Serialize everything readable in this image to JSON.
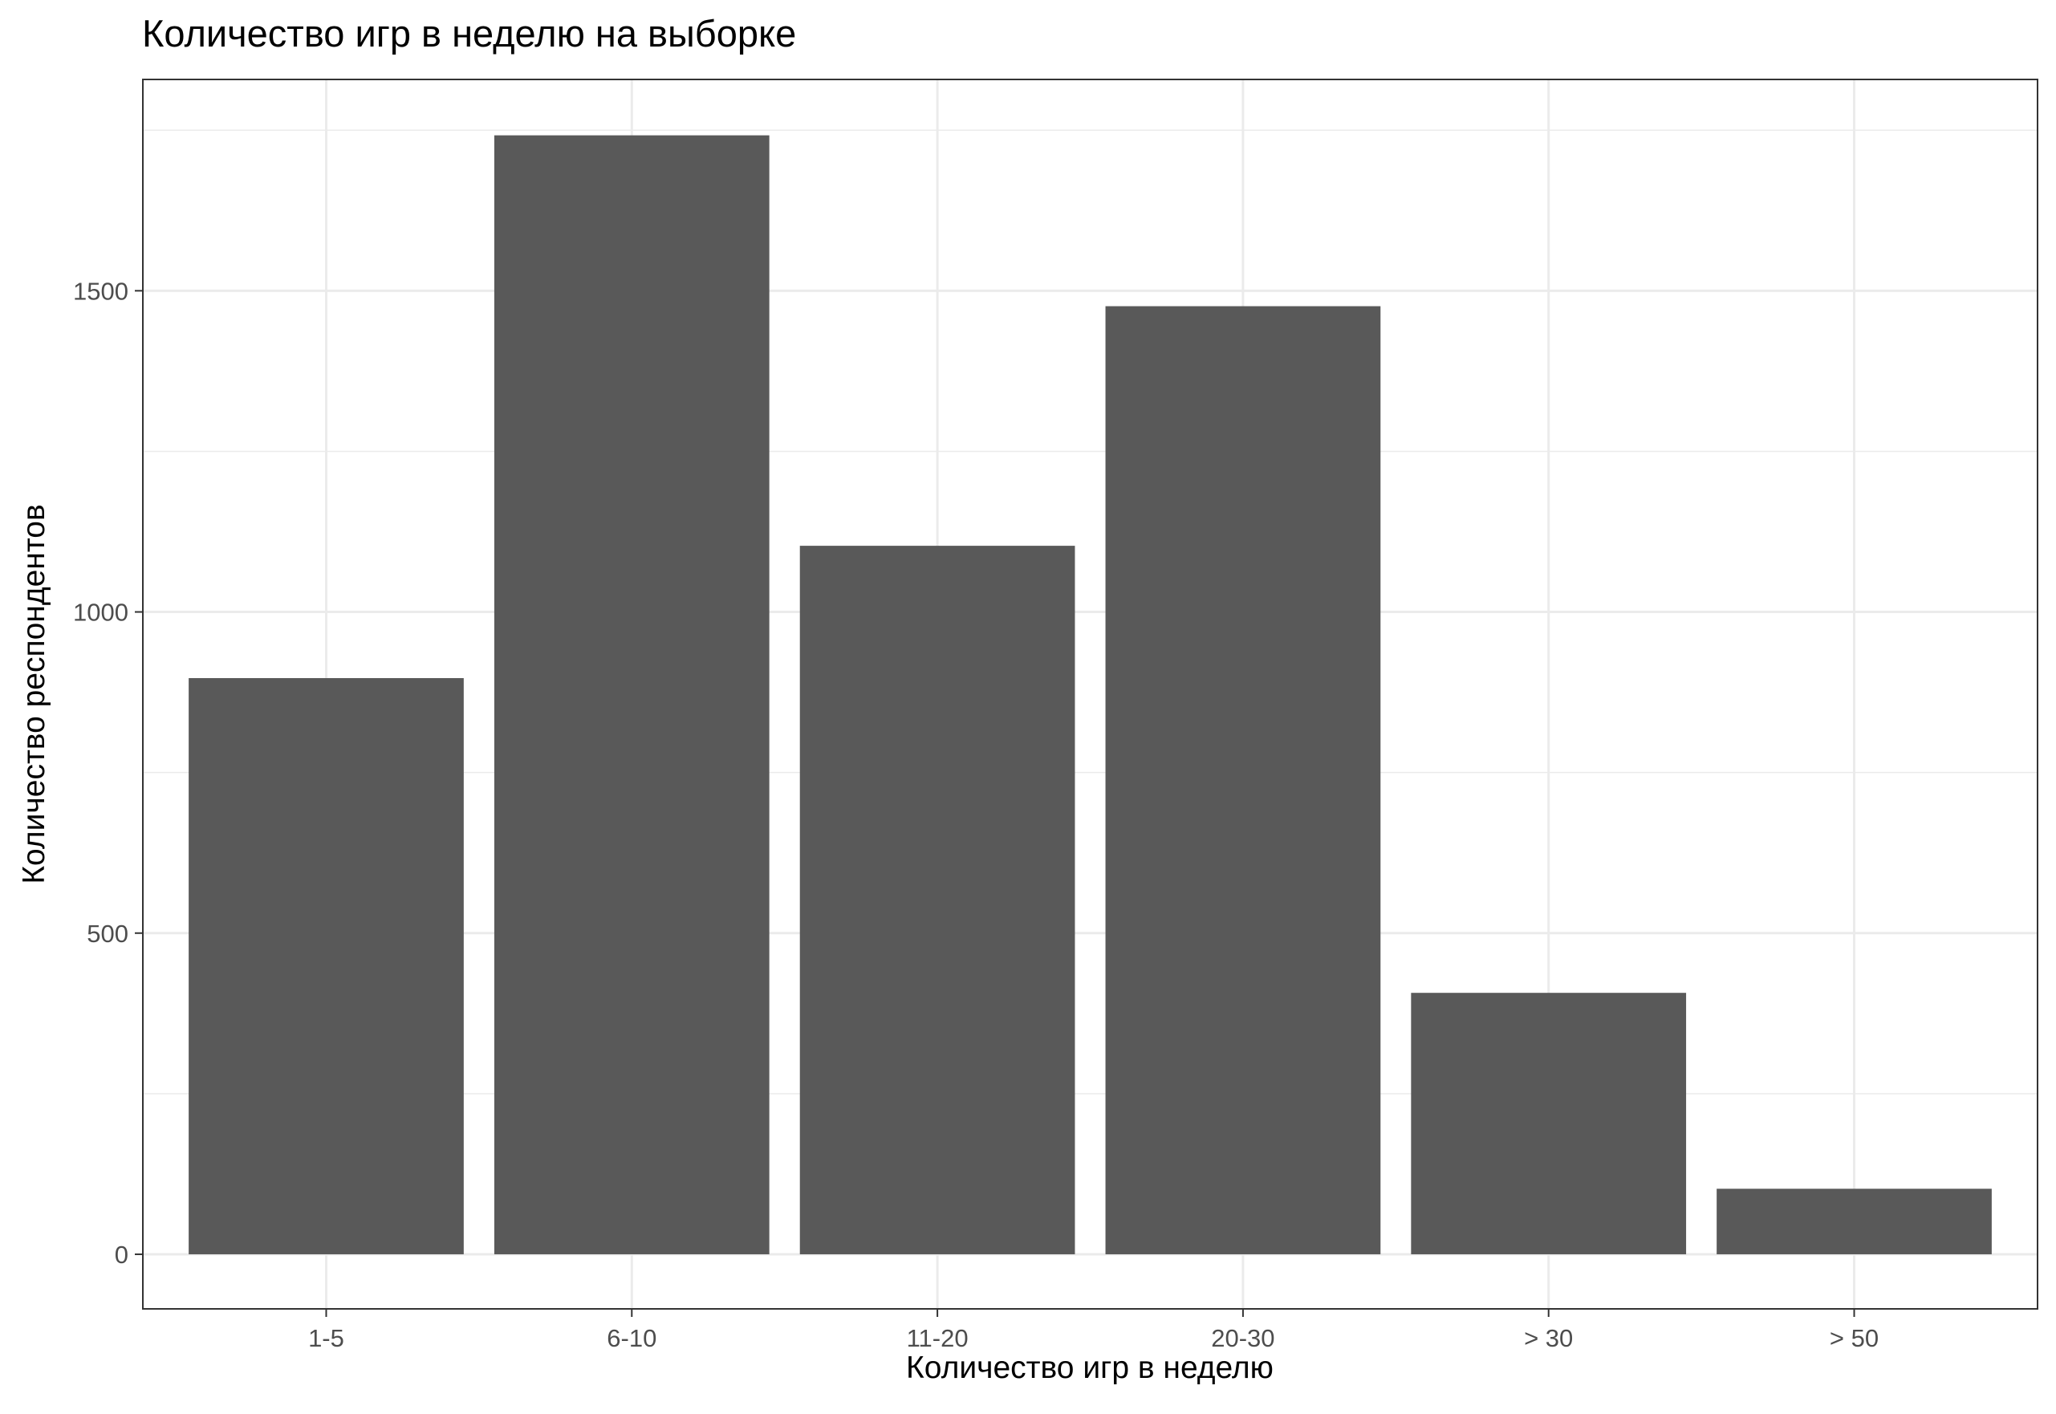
{
  "chart_data": {
    "type": "bar",
    "title": "Количество игр в неделю на выборке",
    "xlabel": "Количество игр в неделю",
    "ylabel": "Количество респондентов",
    "categories": [
      "1-5",
      "6-10",
      "11-20",
      "20-30",
      "> 30",
      "> 50"
    ],
    "values": [
      897,
      1742,
      1103,
      1476,
      407,
      102
    ],
    "yticks": [
      0,
      500,
      1000,
      1500
    ],
    "ylim": [
      -85,
      1829
    ],
    "grid": true,
    "bar_color": "#595959",
    "grid_color": "#ebebeb"
  }
}
